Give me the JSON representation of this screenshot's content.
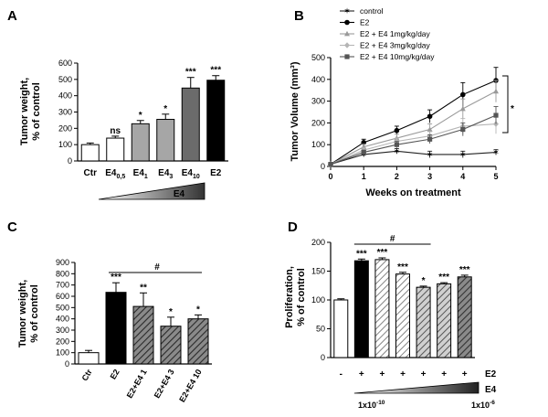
{
  "panels": {
    "A": "A",
    "B": "B",
    "C": "C",
    "D": "D"
  },
  "chart_data": [
    {
      "panel": "A",
      "type": "bar",
      "ylabel": "Tumor weight, % of control",
      "ylim": [
        0,
        600
      ],
      "yticks": [
        "0",
        "100",
        "200",
        "300",
        "400",
        "500",
        "600"
      ],
      "categories": [
        {
          "base": "Ctr",
          "sub": ""
        },
        {
          "base": "E4",
          "sub": "0,5"
        },
        {
          "base": "E4",
          "sub": "1"
        },
        {
          "base": "E4",
          "sub": "3"
        },
        {
          "base": "E4",
          "sub": "10"
        },
        {
          "base": "E2",
          "sub": ""
        }
      ],
      "values": [
        100,
        140,
        228,
        255,
        447,
        495
      ],
      "errors": [
        10,
        12,
        20,
        32,
        65,
        28
      ],
      "fills": [
        "#ffffff",
        "#ffffff",
        "#a6a6a6",
        "#a6a6a6",
        "#6b6b6b",
        "#000000"
      ],
      "significance": [
        "",
        "ns",
        "*",
        "*",
        "***",
        "***"
      ],
      "gradient_label": "E4"
    },
    {
      "panel": "B",
      "type": "line",
      "xlabel": "Weeks on treatment",
      "ylabel": "Tumor Volume (mm³)",
      "ylim": [
        0,
        500
      ],
      "xlim": [
        0,
        5
      ],
      "yticks": [
        "0",
        "100",
        "200",
        "300",
        "400",
        "500"
      ],
      "xticks": [
        "0",
        "1",
        "2",
        "3",
        "4",
        "5"
      ],
      "x": [
        0,
        1,
        2,
        3,
        4,
        5
      ],
      "series": [
        {
          "name": "control",
          "values": [
            10,
            55,
            70,
            55,
            55,
            65
          ],
          "errors": [
            3,
            10,
            12,
            15,
            15,
            12
          ],
          "color": "#222222",
          "marker": "star"
        },
        {
          "name": "E2",
          "values": [
            10,
            110,
            165,
            230,
            330,
            395
          ],
          "errors": [
            3,
            15,
            20,
            30,
            55,
            60
          ],
          "color": "#000000",
          "marker": "circle"
        },
        {
          "name": "E2 + E4 1mg/kg/day",
          "values": [
            10,
            90,
            130,
            170,
            265,
            345
          ],
          "errors": [
            3,
            12,
            18,
            25,
            45,
            50
          ],
          "color": "#9a9a9a",
          "marker": "triangle"
        },
        {
          "name": "E2 + E4 3mg/kg/day",
          "values": [
            10,
            75,
            115,
            140,
            185,
            195
          ],
          "errors": [
            3,
            10,
            15,
            20,
            35,
            45
          ],
          "color": "#b5b5b5",
          "marker": "diamond"
        },
        {
          "name": "E2 + E4 10mg/kg/day",
          "values": [
            10,
            65,
            100,
            125,
            170,
            235
          ],
          "errors": [
            3,
            10,
            15,
            20,
            30,
            40
          ],
          "color": "#555555",
          "marker": "square"
        }
      ],
      "significance": "*"
    },
    {
      "panel": "C",
      "type": "bar",
      "ylabel": "Tumor weight, % of control",
      "ylim": [
        0,
        900
      ],
      "yticks": [
        "0",
        "100",
        "200",
        "300",
        "400",
        "500",
        "600",
        "700",
        "800",
        "900"
      ],
      "categories": [
        "Ctr",
        "E2",
        "E2+E4 1",
        "E2+E4 3",
        "E2+E4 10"
      ],
      "values": [
        100,
        635,
        510,
        335,
        400
      ],
      "errors": [
        20,
        85,
        120,
        80,
        35
      ],
      "fills": [
        "#ffffff",
        "#000000",
        "hatch",
        "hatch",
        "hatch"
      ],
      "significance": [
        "",
        "***",
        "**",
        "*",
        "*"
      ],
      "bracket_label": "#"
    },
    {
      "panel": "D",
      "type": "bar",
      "ylabel": "Proliferation, % of control",
      "ylim": [
        0,
        200
      ],
      "yticks": [
        "0",
        "50",
        "100",
        "150",
        "200"
      ],
      "values": [
        100,
        168,
        170,
        145,
        122,
        128,
        140
      ],
      "errors": [
        2,
        3,
        3,
        3,
        2,
        2,
        3
      ],
      "fills": [
        "#ffffff",
        "#000000",
        "hatch-light",
        "hatch-light",
        "hatch-mid",
        "hatch-mid",
        "hatch-dark"
      ],
      "significance": [
        "",
        "***",
        "***",
        "***",
        "*",
        "***",
        "***"
      ],
      "e2_row": [
        "-",
        "+",
        "+",
        "+",
        "+",
        "+",
        "+"
      ],
      "e2_label": "E2",
      "e4_label": "E4",
      "e4_min": "1x10",
      "e4_min_exp": "-10",
      "e4_max": "1x10",
      "e4_max_exp": "-6",
      "bracket_label": "#"
    }
  ]
}
